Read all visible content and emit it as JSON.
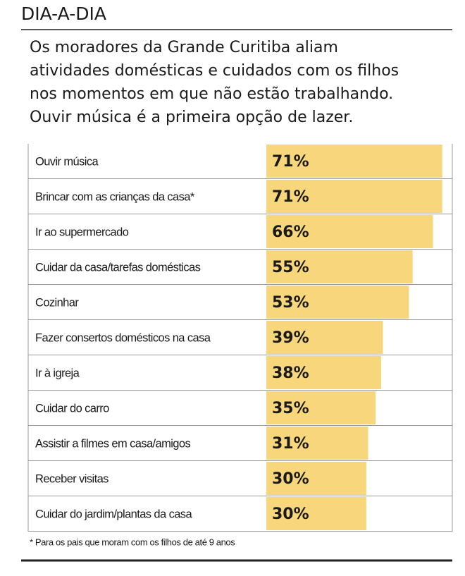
{
  "chart_data": {
    "type": "bar",
    "title": "DIA-A-DIA",
    "subtitle": [
      "Os moradores da Grande Curitiba aliam",
      "atividades domésticas e cuidados com os filhos",
      "nos momentos em que não estão trabalhando.",
      "Ouvir música é a primeira opção de lazer."
    ],
    "categories": [
      "Ouvir música",
      "Brincar com as crianças da casa*",
      "Ir ao supermercado",
      "Cuidar da casa/tarefas domésticas",
      "Cozinhar",
      "Fazer consertos domésticos na casa",
      "Ir à igreja",
      "Cuidar do carro",
      "Assistir a filmes em casa/amigos",
      "Receber visitas",
      "Cuidar do jardim/plantas da casa"
    ],
    "values": [
      71,
      71,
      66,
      55,
      53,
      39,
      38,
      35,
      31,
      30,
      30
    ],
    "value_labels": [
      "71%",
      "71%",
      "66%",
      "55%",
      "53%",
      "39%",
      "38%",
      "35%",
      "31%",
      "30%",
      "30%"
    ],
    "color": "#f8d67c",
    "footnote": "* Para os pais que moram com os filhos de até 9 anos"
  }
}
